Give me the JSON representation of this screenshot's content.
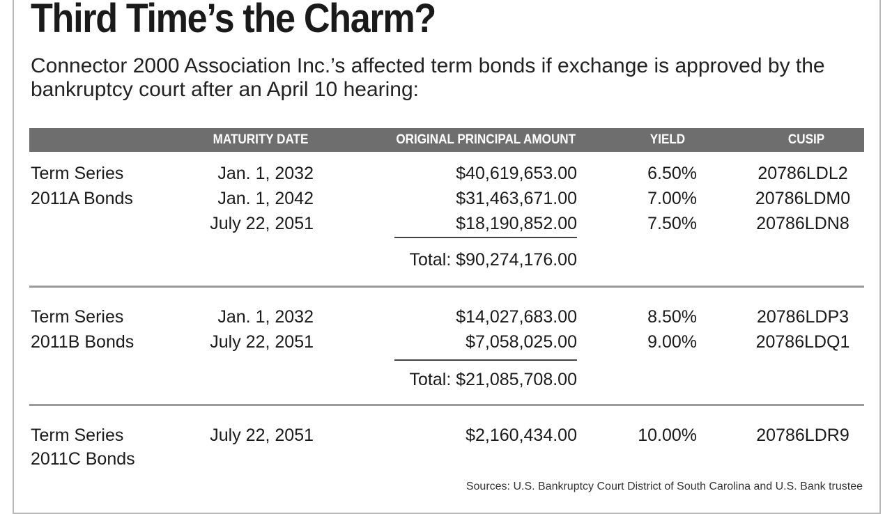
{
  "title": "Third Time’s the Charm?",
  "subtitle": "Connector 2000 Association Inc.’s affected term bonds if exchange is approved by the bankruptcy court after an April 10 hearing:",
  "columns": {
    "maturity": "MATURITY DATE",
    "principal": "ORIGINAL PRINCIPAL AMOUNT",
    "yield": "YIELD",
    "cusip": "CUSIP"
  },
  "groups": [
    {
      "label_line1": "Term Series",
      "label_line2": "2011A Bonds",
      "rows": [
        {
          "maturity": "Jan. 1, 2032",
          "principal": "$40,619,653.00",
          "yield": "6.50%",
          "cusip": "20786LDL2"
        },
        {
          "maturity": "Jan. 1, 2042",
          "principal": "$31,463,671.00",
          "yield": "7.00%",
          "cusip": "20786LDM0"
        },
        {
          "maturity": "July 22, 2051",
          "principal": "$18,190,852.00",
          "yield": "7.50%",
          "cusip": "20786LDN8"
        }
      ],
      "total": "Total: $90,274,176.00"
    },
    {
      "label_line1": "Term Series",
      "label_line2": "2011B Bonds",
      "rows": [
        {
          "maturity": "Jan. 1, 2032",
          "principal": "$14,027,683.00",
          "yield": "8.50%",
          "cusip": "20786LDP3"
        },
        {
          "maturity": "July 22, 2051",
          "principal": "$7,058,025.00",
          "yield": "9.00%",
          "cusip": "20786LDQ1"
        }
      ],
      "total": "Total: $21,085,708.00"
    },
    {
      "label_line1": "Term Series",
      "label_line2": "2011C Bonds",
      "rows": [
        {
          "maturity": "July 22, 2051",
          "principal": "$2,160,434.00",
          "yield": "10.00%",
          "cusip": "20786LDR9"
        }
      ]
    }
  ],
  "source": "Sources: U.S. Bankruptcy Court District of South Carolina and U.S. Bank trustee",
  "colors": {
    "header_bg": "#6e6e6e",
    "text": "#1a1a1a",
    "divider": "#9a9a9a"
  }
}
